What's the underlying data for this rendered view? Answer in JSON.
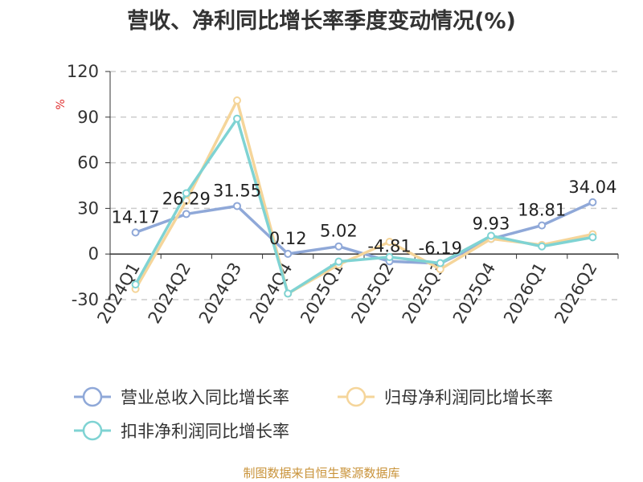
{
  "title": "营收、净利同比增长率季度变动情况(%)",
  "source": "制图数据来自恒生聚源数据库",
  "chart_data": {
    "type": "line",
    "unit": "%",
    "categories": [
      "2024Q1",
      "2024Q2",
      "2024Q3",
      "2024Q4",
      "2025Q1",
      "2025Q2",
      "2025Q3",
      "2025Q4",
      "2026Q1",
      "2026Q2"
    ],
    "ylim": [
      -30,
      120
    ],
    "yticks": [
      "-30",
      "0",
      "30",
      "60",
      "90",
      "120"
    ],
    "grid": true,
    "legend_position": "bottom",
    "series": [
      {
        "name": "营业总收入同比增长率",
        "color": "#8fa8d8",
        "values": [
          14.17,
          26.29,
          31.55,
          0.12,
          5.02,
          -4.81,
          -6.19,
          9.93,
          18.81,
          34.04
        ],
        "labels": [
          "14.17",
          "26.29",
          "31.55",
          "0.12",
          "5.02",
          "-4.81",
          "-6.19",
          "9.93",
          "18.81",
          "34.04"
        ]
      },
      {
        "name": "归母净利润同比增长率",
        "color": "#f5d59a",
        "values": [
          -23,
          35,
          101,
          -26,
          -7,
          8,
          -10,
          10,
          6,
          13
        ]
      },
      {
        "name": "扣非净利润同比增长率",
        "color": "#7fd3d3",
        "values": [
          -20,
          40,
          89,
          -26,
          -5,
          -2,
          -6,
          12,
          5,
          11
        ]
      }
    ]
  }
}
